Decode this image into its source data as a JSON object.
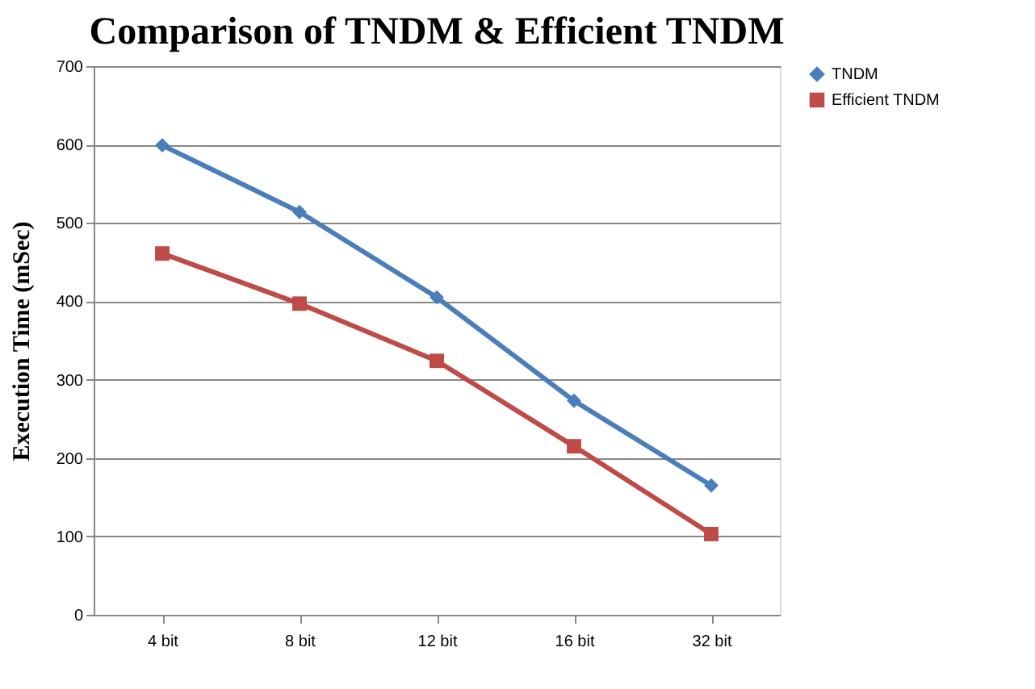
{
  "chart_data": {
    "type": "line",
    "title": "Comparison of TNDM & Efficient TNDM",
    "ylabel": "Execution Time (mSec)",
    "categories": [
      "4 bit",
      "8 bit",
      "12 bit",
      "16 bit",
      "32 bit"
    ],
    "series": [
      {
        "name": "TNDM",
        "color": "#4a7ebb",
        "marker": "diamond",
        "values": [
          599,
          514,
          405,
          273,
          165
        ]
      },
      {
        "name": "Efficient TNDM",
        "color": "#be4b48",
        "marker": "square",
        "values": [
          461,
          397,
          324,
          215,
          103
        ]
      }
    ],
    "ylim": [
      0,
      700
    ],
    "yticks": [
      0,
      100,
      200,
      300,
      400,
      500,
      600,
      700
    ],
    "grid": "y",
    "legend": "right",
    "line_style": "solid"
  }
}
